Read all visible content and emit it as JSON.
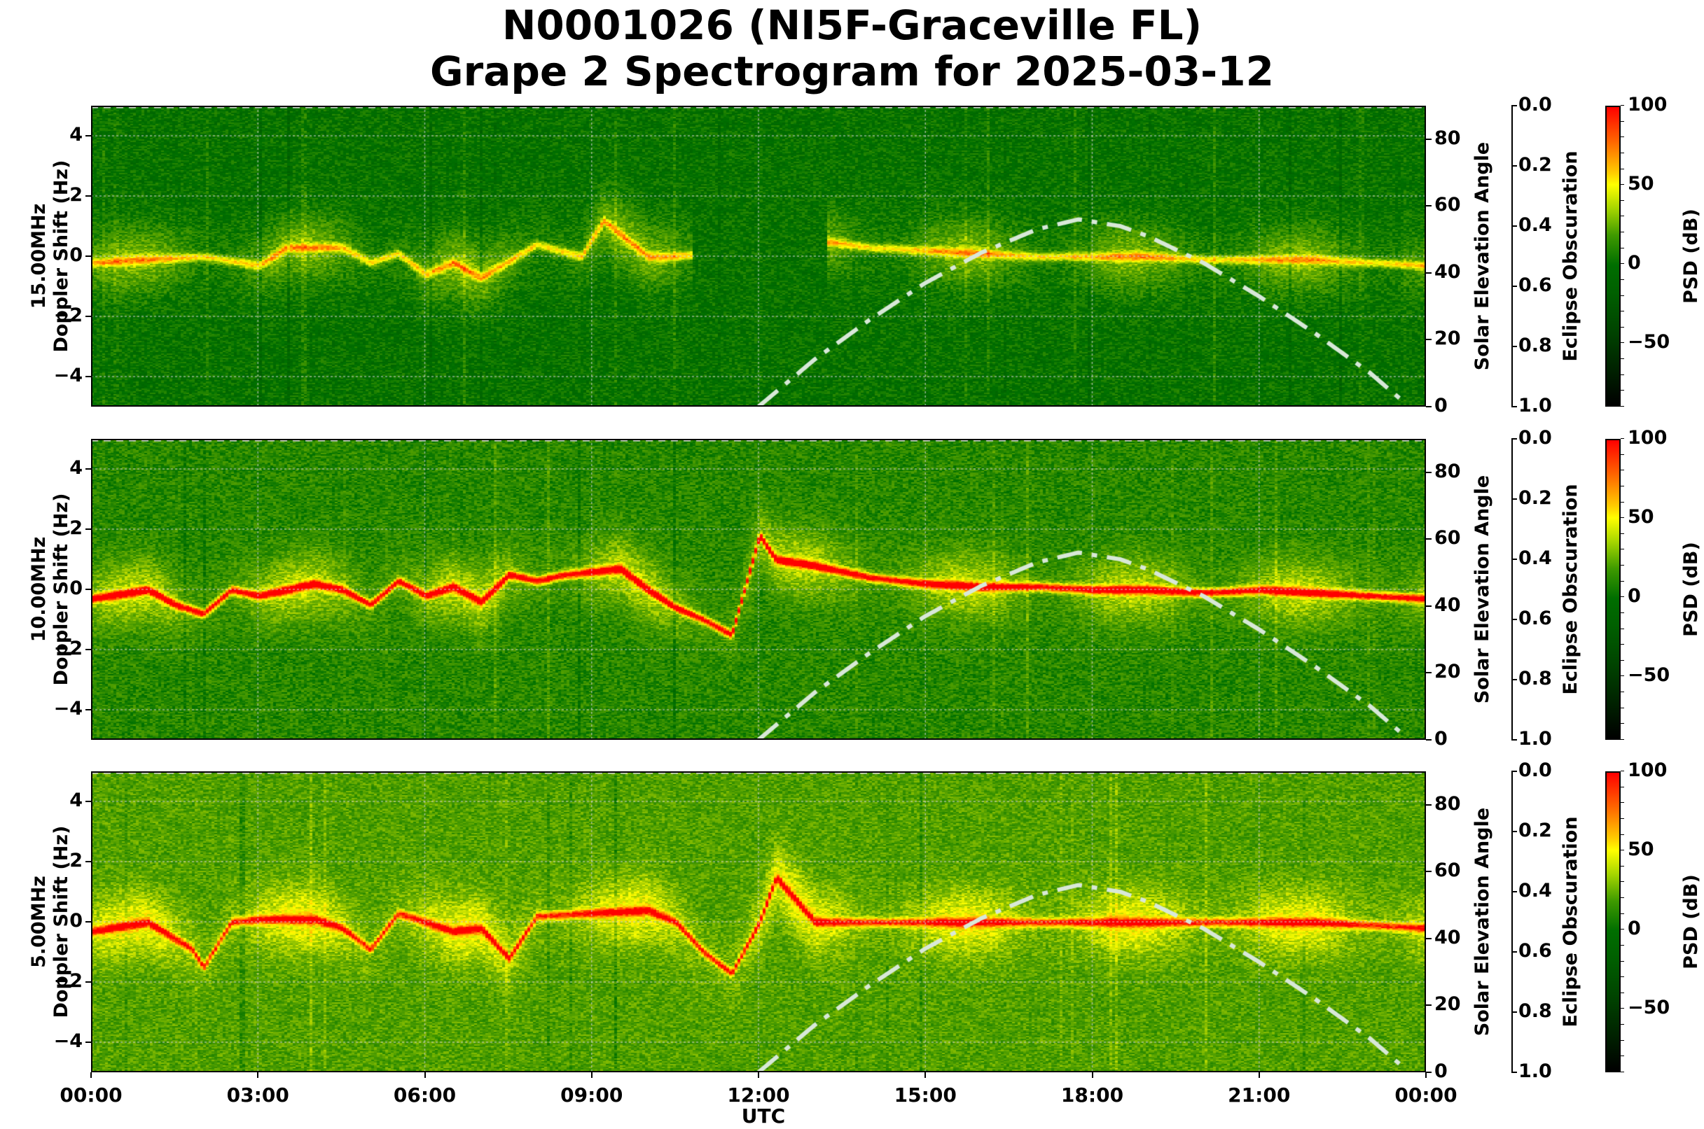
{
  "title": {
    "line1": "N0001026 (NI5F-Graceville FL)",
    "line2": "Grape 2 Spectrogram for 2025-03-12"
  },
  "x_axis": {
    "label": "UTC",
    "ticks": [
      "00:00",
      "03:00",
      "06:00",
      "09:00",
      "12:00",
      "15:00",
      "18:00",
      "21:00",
      "00:00"
    ]
  },
  "colorbar": {
    "label": "PSD (dB)",
    "ticks": [
      "100",
      "50",
      "0",
      "−50"
    ],
    "tick_values": [
      100,
      50,
      0,
      -50
    ],
    "range": [
      -90,
      100
    ],
    "colors": {
      "max": "#ff0000",
      "mid_high": "#ffff00",
      "zero": "#006e00",
      "min": "#000000"
    }
  },
  "panels": [
    {
      "freq_label": "15.00MHz",
      "ylabel": "Doppler Shift (Hz)",
      "right_label": "Solar Elevation Angle",
      "eclipse_label": "Eclipse Obscuration"
    },
    {
      "freq_label": "10.00MHz",
      "ylabel": "Doppler Shift (Hz)",
      "right_label": "Solar Elevation Angle",
      "eclipse_label": "Eclipse Obscuration"
    },
    {
      "freq_label": "5.00MHz",
      "ylabel": "Doppler Shift (Hz)",
      "right_label": "Solar Elevation Angle",
      "eclipse_label": "Eclipse Obscuration"
    }
  ],
  "y_left_ticks": [
    "4",
    "2",
    "0",
    "−2",
    "−4"
  ],
  "y_right_ticks": [
    "80",
    "60",
    "40",
    "20",
    "0"
  ],
  "eclipse_ticks": [
    "0.0",
    "0.2",
    "0.4",
    "0.6",
    "0.8",
    "1.0"
  ],
  "chart_data": [
    {
      "type": "heatmap",
      "title": "15.00MHz",
      "xlabel": "UTC",
      "ylabel": "Doppler Shift (Hz)",
      "xlim": [
        "00:00",
        "24:00"
      ],
      "ylim": [
        -5,
        5
      ],
      "clim": [
        -90,
        100
      ],
      "background_dB": 0,
      "trace": {
        "hours": [
          0,
          1,
          2,
          3,
          3.5,
          4.5,
          5,
          5.5,
          6,
          6.5,
          7,
          8,
          8.8,
          9.2,
          10,
          10.4,
          13.2,
          14,
          15,
          16,
          17,
          18,
          19,
          20,
          21,
          22,
          23,
          24
        ],
        "doppler": [
          -0.2,
          -0.1,
          0.0,
          -0.3,
          0.3,
          0.3,
          -0.2,
          0.1,
          -0.6,
          -0.2,
          -0.7,
          0.4,
          0.0,
          1.2,
          0.0,
          0.0,
          0.5,
          0.3,
          0.2,
          0.1,
          0.0,
          0.0,
          0.0,
          -0.1,
          -0.1,
          -0.1,
          -0.2,
          -0.3
        ],
        "peak_dB": 50
      },
      "data_gap_hours": [
        10.8,
        13.2
      ],
      "secondary": {
        "type": "line",
        "name": "Solar Elevation Angle",
        "ylim": [
          0,
          90
        ],
        "x_hours": [
          12,
          13,
          14,
          15,
          16,
          17,
          17.75,
          18.5,
          19,
          20,
          21,
          22,
          23,
          23.7
        ],
        "y": [
          0,
          14,
          26,
          37,
          46,
          53,
          56,
          54,
          51,
          43,
          33,
          22,
          10,
          0
        ],
        "style": "dash-dot",
        "color": "#d8e8d8"
      }
    },
    {
      "type": "heatmap",
      "title": "10.00MHz",
      "xlabel": "UTC",
      "ylabel": "Doppler Shift (Hz)",
      "xlim": [
        "00:00",
        "24:00"
      ],
      "ylim": [
        -5,
        5
      ],
      "clim": [
        -90,
        100
      ],
      "background_dB": 10,
      "trace": {
        "hours": [
          0,
          1,
          1.5,
          2,
          2.5,
          3,
          4,
          4.5,
          5,
          5.5,
          6,
          6.5,
          7,
          7.5,
          8,
          8.5,
          9,
          9.5,
          10,
          10.5,
          11,
          11.5,
          12,
          12.3,
          13,
          14,
          15,
          16,
          17,
          18,
          19,
          20,
          21,
          22,
          23,
          24
        ],
        "doppler": [
          -0.3,
          0.0,
          -0.5,
          -0.8,
          0.0,
          -0.2,
          0.2,
          0.0,
          -0.5,
          0.3,
          -0.2,
          0.1,
          -0.4,
          0.5,
          0.3,
          0.5,
          0.6,
          0.7,
          0.0,
          -0.6,
          -1.0,
          -1.5,
          1.8,
          1.0,
          0.8,
          0.4,
          0.2,
          0.1,
          0.1,
          0.0,
          0.0,
          -0.1,
          0.0,
          -0.1,
          -0.2,
          -0.3
        ],
        "peak_dB": 90
      },
      "secondary": {
        "type": "line",
        "name": "Solar Elevation Angle",
        "ylim": [
          0,
          90
        ],
        "x_hours": [
          12,
          13,
          14,
          15,
          16,
          17,
          17.75,
          18.5,
          19,
          20,
          21,
          22,
          23,
          23.7
        ],
        "y": [
          0,
          14,
          26,
          37,
          46,
          53,
          56,
          54,
          51,
          43,
          33,
          22,
          10,
          0
        ],
        "style": "dash-dot",
        "color": "#d8e8d8"
      }
    },
    {
      "type": "heatmap",
      "title": "5.00MHz",
      "xlabel": "UTC",
      "ylabel": "Doppler Shift (Hz)",
      "xlim": [
        "00:00",
        "24:00"
      ],
      "ylim": [
        -5,
        5
      ],
      "clim": [
        -90,
        100
      ],
      "background_dB": 20,
      "trace": {
        "hours": [
          0,
          1,
          1.8,
          2,
          2.5,
          3,
          4,
          4.5,
          5,
          5.5,
          6,
          6.5,
          7,
          7.5,
          8,
          9,
          10,
          10.5,
          11,
          11.5,
          12,
          12.3,
          13,
          14,
          16,
          18,
          20,
          22,
          24
        ],
        "doppler": [
          -0.3,
          0.0,
          -0.9,
          -1.5,
          0.0,
          0.1,
          0.1,
          -0.2,
          -0.9,
          0.3,
          0.0,
          -0.3,
          -0.2,
          -1.2,
          0.2,
          0.3,
          0.4,
          0.0,
          -1.0,
          -1.7,
          0.0,
          1.5,
          0.0,
          0.0,
          0.0,
          0.0,
          0.0,
          0.0,
          -0.2
        ],
        "peak_dB": 70
      },
      "secondary": {
        "type": "line",
        "name": "Solar Elevation Angle",
        "ylim": [
          0,
          90
        ],
        "x_hours": [
          12,
          13,
          14,
          15,
          16,
          17,
          17.75,
          18.5,
          19,
          20,
          21,
          22,
          23,
          23.7
        ],
        "y": [
          0,
          14,
          26,
          37,
          46,
          53,
          56,
          54,
          51,
          43,
          33,
          22,
          10,
          0
        ],
        "style": "dash-dot",
        "color": "#d8e8d8"
      }
    }
  ]
}
